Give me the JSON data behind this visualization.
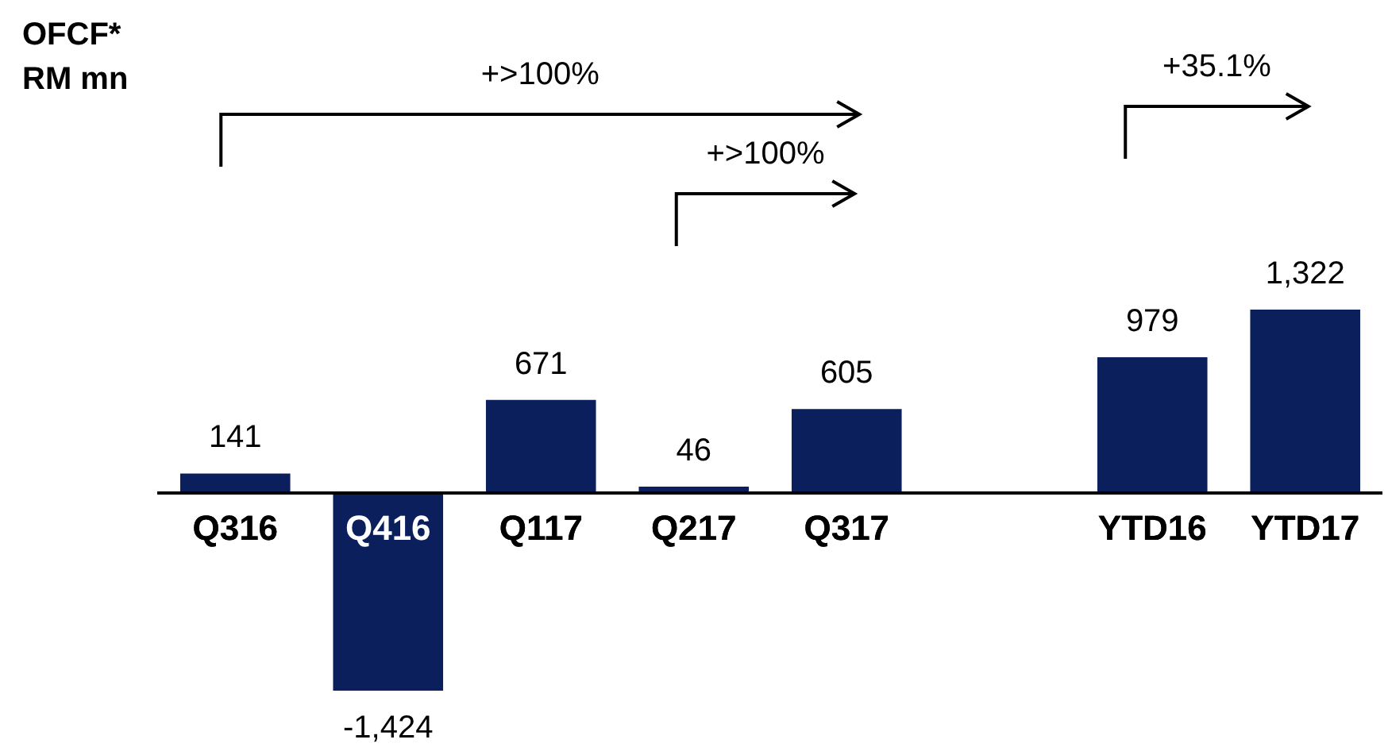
{
  "chart_data": {
    "type": "bar",
    "title": "OFCF*",
    "subtitle": "RM mn",
    "categories": [
      "Q316",
      "Q416",
      "Q117",
      "Q217",
      "Q317",
      null,
      "YTD16",
      "YTD17"
    ],
    "values": [
      141,
      -1424,
      671,
      46,
      605,
      null,
      979,
      1322
    ],
    "value_labels": [
      "141",
      "-1,424",
      "671",
      "46",
      "605",
      null,
      "979",
      "1,322"
    ],
    "color": "#0a1f5c",
    "grid": false,
    "legend": false,
    "tick_labels": "x",
    "annotations": [
      "+>100%",
      "+>100%",
      "+35.1%"
    ]
  }
}
